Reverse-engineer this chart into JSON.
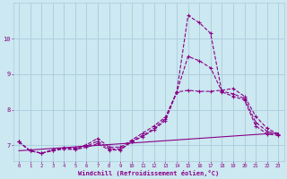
{
  "background_color": "#cce8f0",
  "grid_color": "#aaccdd",
  "line_color": "#880088",
  "xlabel": "Windchill (Refroidissement éolien,°C)",
  "xlim": [
    -0.5,
    23.5
  ],
  "ylim": [
    6.55,
    11.0
  ],
  "yticks": [
    7,
    8,
    9,
    10
  ],
  "xticks": [
    0,
    1,
    2,
    3,
    4,
    5,
    6,
    7,
    8,
    9,
    10,
    11,
    12,
    13,
    14,
    15,
    16,
    17,
    18,
    19,
    20,
    21,
    22,
    23
  ],
  "series": [
    {
      "x": [
        0,
        1,
        2,
        3,
        4,
        5,
        6,
        7,
        8,
        9,
        10,
        11,
        12,
        13,
        14,
        15,
        16,
        17,
        18,
        19,
        20,
        21,
        22,
        23
      ],
      "y": [
        7.1,
        6.85,
        6.78,
        6.85,
        6.9,
        6.88,
        6.95,
        7.05,
        6.87,
        6.87,
        7.1,
        7.25,
        7.45,
        7.7,
        8.5,
        10.65,
        10.45,
        10.15,
        8.5,
        8.38,
        8.28,
        7.55,
        7.32,
        7.28
      ]
    },
    {
      "x": [
        0,
        1,
        2,
        3,
        4,
        5,
        6,
        7,
        8,
        9,
        10,
        11,
        12,
        13,
        14,
        15,
        16,
        17,
        18,
        19,
        20,
        21,
        22,
        23
      ],
      "y": [
        7.1,
        6.85,
        6.78,
        6.88,
        6.93,
        6.93,
        7.02,
        7.2,
        6.95,
        6.95,
        7.15,
        7.35,
        7.55,
        7.8,
        8.5,
        8.55,
        8.52,
        8.52,
        8.55,
        8.6,
        8.38,
        7.82,
        7.48,
        7.32
      ]
    },
    {
      "x": [
        0,
        1,
        2,
        3,
        4,
        5,
        6,
        7,
        8,
        9,
        10,
        11,
        12,
        13,
        14,
        15,
        16,
        17,
        18,
        19,
        20,
        21,
        22,
        23
      ],
      "y": [
        7.1,
        6.85,
        6.78,
        6.86,
        6.91,
        6.9,
        6.98,
        7.12,
        6.9,
        6.9,
        7.12,
        7.28,
        7.48,
        7.75,
        8.5,
        9.5,
        9.38,
        9.18,
        8.52,
        8.45,
        8.32,
        7.65,
        7.4,
        7.3
      ]
    },
    {
      "x": [
        0,
        23
      ],
      "y": [
        6.85,
        7.35
      ]
    }
  ],
  "series_styles": [
    {
      "linestyle": "--",
      "marker": "+",
      "markersize": 3.5,
      "linewidth": 0.8
    },
    {
      "linestyle": "--",
      "marker": "+",
      "markersize": 3.5,
      "linewidth": 0.8
    },
    {
      "linestyle": "--",
      "marker": "+",
      "markersize": 3.5,
      "linewidth": 0.8
    },
    {
      "linestyle": "-",
      "marker": "None",
      "markersize": 0,
      "linewidth": 0.8
    }
  ]
}
